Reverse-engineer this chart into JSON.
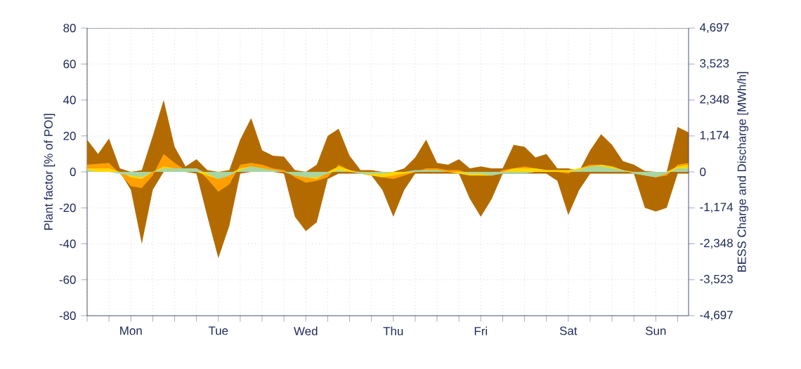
{
  "chart_data": {
    "type": "area",
    "ylabel": "Plant factor [% of POI]",
    "y2label": "BESS Charge and Discharge [MWh/h]",
    "categories": [
      null,
      null,
      null,
      null,
      "Mon",
      null,
      null,
      null,
      null,
      null,
      null,
      null,
      "Tue",
      null,
      null,
      null,
      null,
      null,
      null,
      null,
      "Wed",
      null,
      null,
      null,
      null,
      null,
      null,
      null,
      "Thu",
      null,
      null,
      null,
      null,
      null,
      null,
      null,
      "Fri",
      null,
      null,
      null,
      null,
      null,
      null,
      null,
      "Sat",
      null,
      null,
      null,
      null,
      null,
      null,
      null,
      "Sun",
      null,
      null,
      null
    ],
    "ylim": [
      -80,
      80
    ],
    "yticks": [
      -80,
      -60,
      -40,
      -20,
      0,
      20,
      40,
      60,
      80
    ],
    "y2lim": [
      -4697,
      4697
    ],
    "y2ticks": [
      {
        "value": -4697,
        "label": "-4,697"
      },
      {
        "value": -3523,
        "label": "-3,523"
      },
      {
        "value": -2348,
        "label": "-2,348"
      },
      {
        "value": -1174,
        "label": "-1,174"
      },
      0,
      {
        "value": 1174,
        "label": "1,174"
      },
      {
        "value": 2348,
        "label": "2,348"
      },
      {
        "value": 3523,
        "label": "3,523"
      },
      {
        "value": 4697,
        "label": "4,697"
      }
    ],
    "grid": true,
    "series": [
      {
        "color": "#b36b00",
        "values": [
          18,
          10,
          18.5,
          2,
          0,
          1,
          20,
          40,
          14,
          3,
          7,
          1,
          0,
          1,
          18,
          30,
          12,
          9,
          8.5,
          1,
          0,
          4,
          20,
          24,
          9,
          1,
          1,
          0,
          0,
          2,
          8,
          18,
          5,
          4,
          7,
          2,
          3,
          2,
          2,
          15,
          14,
          8,
          10,
          2,
          2,
          0.5,
          12,
          21,
          15,
          6,
          4,
          0.5,
          0,
          0,
          25,
          22
        ]
      },
      {
        "color": "#b36b00",
        "values": [
          0,
          0,
          0,
          0,
          -10,
          -40,
          -10,
          0,
          0,
          0,
          -1,
          -25,
          -48,
          -30,
          -1,
          0,
          0,
          0,
          -1,
          -25,
          -33,
          -28,
          -4,
          -1,
          -1,
          -1,
          -2,
          -10,
          -25,
          -10,
          -1,
          -1,
          -1,
          -1,
          -1,
          -15,
          -25,
          -15,
          -1,
          -1,
          -1,
          -1,
          -1,
          -5,
          -24,
          -10,
          -1,
          -1,
          -1,
          -1,
          -1,
          -20,
          -22,
          -20,
          -1,
          -1
        ]
      },
      {
        "color": "#ffa000",
        "values": [
          4,
          4.5,
          5,
          -1,
          -8,
          -9,
          -2,
          10,
          5,
          1,
          2,
          -4,
          -11,
          -7,
          4,
          5,
          4,
          2,
          1,
          -3,
          -6,
          -5,
          -3,
          4,
          1,
          0,
          -2,
          -3,
          -4,
          -2,
          0,
          2,
          2,
          1,
          1,
          -1,
          -2,
          -2,
          1,
          2,
          3,
          2,
          1,
          0,
          -1,
          2,
          4,
          4,
          3,
          1,
          -1,
          -2,
          -3,
          -2,
          4,
          5
        ]
      },
      {
        "color": "#ffd700",
        "values": [
          2,
          2,
          2,
          0,
          -3,
          -4,
          0,
          3,
          2,
          1,
          0,
          -2,
          -4,
          -1,
          2,
          3,
          2,
          1,
          0,
          -2,
          -3,
          -4,
          0,
          3,
          1,
          -1,
          -2,
          -3,
          -2,
          -1,
          0,
          1,
          0,
          0,
          -1,
          -2,
          -2,
          -2,
          0,
          2,
          2,
          2,
          1,
          1,
          1,
          2,
          3,
          4,
          3,
          1,
          0,
          -1,
          -2,
          0,
          3,
          4
        ]
      },
      {
        "color": "#a8d5a2",
        "values": [
          1,
          0,
          0,
          -1,
          -2,
          -3,
          0,
          2,
          2,
          2,
          2,
          -1,
          -4,
          -2,
          1,
          3,
          2,
          1,
          0,
          -2,
          -3,
          -3,
          -1,
          1,
          0,
          -1,
          -1,
          -1,
          0,
          0,
          1,
          1,
          1,
          0,
          0,
          -1,
          -1,
          -2,
          -1,
          -1,
          -1,
          0,
          0,
          0,
          0,
          1,
          3,
          3,
          2,
          1,
          -1,
          -2,
          -3,
          -1,
          2,
          2
        ]
      }
    ]
  }
}
